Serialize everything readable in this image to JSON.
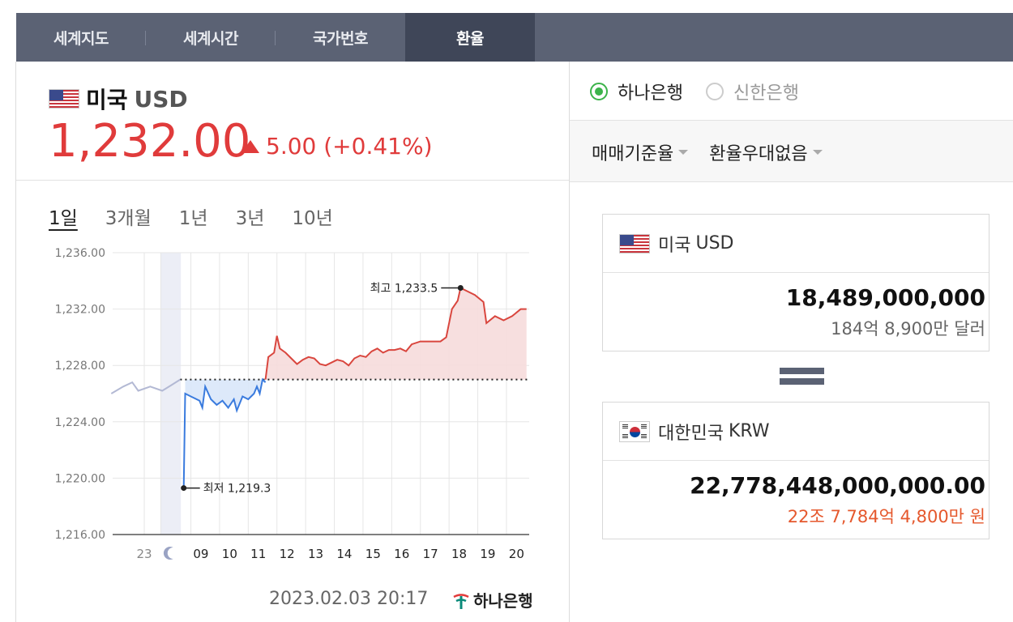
{
  "tabs": [
    {
      "label": "세계지도",
      "active": false
    },
    {
      "label": "세계시간",
      "active": false
    },
    {
      "label": "국가번호",
      "active": false
    },
    {
      "label": "환율",
      "active": true
    }
  ],
  "currency": {
    "name": "미국",
    "code": "USD",
    "rate": "1,232.00",
    "change": "5.00 (+0.41%)",
    "direction": "up",
    "color_up": "#e03b3b"
  },
  "periods": [
    {
      "label": "1일",
      "active": true
    },
    {
      "label": "3개월",
      "active": false
    },
    {
      "label": "1년",
      "active": false
    },
    {
      "label": "3년",
      "active": false
    },
    {
      "label": "10년",
      "active": false
    }
  ],
  "chart_data": {
    "type": "line",
    "y_ticks": [
      "1,236.00",
      "1,232.00",
      "1,228.00",
      "1,224.00",
      "1,220.00",
      "1,216.00"
    ],
    "ylim": [
      1216,
      1236
    ],
    "x_ticks": [
      "23",
      "moon-icon",
      "09",
      "10",
      "11",
      "12",
      "13",
      "14",
      "15",
      "16",
      "17",
      "18",
      "19",
      "20"
    ],
    "baseline": 1227.0,
    "annotations": [
      {
        "label": "최고 1,233.5",
        "x": 18.0,
        "y": 1233.5
      },
      {
        "label": "최저 1,219.3",
        "x": 8.35,
        "y": 1219.3
      }
    ],
    "series": [
      {
        "role": "previous-day",
        "color": "#b3b9d4",
        "points": [
          [
            21.9,
            1226.0
          ],
          [
            22.3,
            1226.5
          ],
          [
            22.6,
            1226.8
          ],
          [
            22.8,
            1226.2
          ],
          [
            23.2,
            1226.5
          ],
          [
            23.6,
            1226.2
          ],
          [
            23.9,
            1226.6
          ],
          [
            24.2,
            1227.0
          ]
        ]
      },
      {
        "role": "below-baseline",
        "color": "#3a7bde",
        "points": [
          [
            8.35,
            1219.3
          ],
          [
            8.4,
            1226.0
          ],
          [
            8.6,
            1225.8
          ],
          [
            8.9,
            1225.5
          ],
          [
            9.0,
            1225.0
          ],
          [
            9.1,
            1226.5
          ],
          [
            9.3,
            1225.6
          ],
          [
            9.5,
            1225.2
          ],
          [
            9.7,
            1225.5
          ],
          [
            9.9,
            1225.0
          ],
          [
            10.1,
            1225.6
          ],
          [
            10.2,
            1224.8
          ],
          [
            10.4,
            1225.8
          ],
          [
            10.6,
            1225.6
          ],
          [
            10.8,
            1226.0
          ],
          [
            10.9,
            1226.5
          ],
          [
            11.0,
            1226.0
          ],
          [
            11.1,
            1227.0
          ],
          [
            11.2,
            1226.8
          ]
        ]
      },
      {
        "role": "above-baseline",
        "color": "#d9463e",
        "points": [
          [
            11.2,
            1227.0
          ],
          [
            11.3,
            1228.6
          ],
          [
            11.5,
            1228.9
          ],
          [
            11.6,
            1230.1
          ],
          [
            11.7,
            1229.2
          ],
          [
            11.9,
            1228.9
          ],
          [
            12.1,
            1228.5
          ],
          [
            12.3,
            1228.1
          ],
          [
            12.5,
            1228.4
          ],
          [
            12.7,
            1228.6
          ],
          [
            12.9,
            1228.5
          ],
          [
            13.1,
            1228.1
          ],
          [
            13.3,
            1228.0
          ],
          [
            13.5,
            1228.2
          ],
          [
            13.7,
            1228.4
          ],
          [
            13.9,
            1228.3
          ],
          [
            14.1,
            1228.0
          ],
          [
            14.3,
            1228.5
          ],
          [
            14.5,
            1228.7
          ],
          [
            14.7,
            1228.6
          ],
          [
            14.9,
            1229.0
          ],
          [
            15.1,
            1229.2
          ],
          [
            15.3,
            1228.9
          ],
          [
            15.5,
            1229.1
          ],
          [
            15.7,
            1229.1
          ],
          [
            15.9,
            1229.2
          ],
          [
            16.1,
            1229.0
          ],
          [
            16.3,
            1229.5
          ],
          [
            16.6,
            1229.7
          ],
          [
            17.0,
            1229.7
          ],
          [
            17.3,
            1229.7
          ],
          [
            17.5,
            1230.0
          ],
          [
            17.7,
            1232.0
          ],
          [
            17.9,
            1232.6
          ],
          [
            18.0,
            1233.5
          ],
          [
            18.2,
            1233.3
          ],
          [
            18.5,
            1233.0
          ],
          [
            18.8,
            1232.5
          ],
          [
            18.9,
            1231.0
          ],
          [
            19.2,
            1231.5
          ],
          [
            19.5,
            1231.2
          ],
          [
            19.8,
            1231.5
          ],
          [
            20.1,
            1232.0
          ],
          [
            20.3,
            1232.0
          ]
        ]
      }
    ]
  },
  "timestamp": "2023.02.03 20:17",
  "bank_logo": "하나은행",
  "banks": [
    {
      "label": "하나은행",
      "selected": true
    },
    {
      "label": "신한은행",
      "selected": false
    }
  ],
  "rate_type": "매매기준율",
  "preference": "환율우대없음",
  "from": {
    "name": "미국",
    "code": "USD",
    "amount": "18,489,000,000",
    "amount_words": "184억 8,900만 달러"
  },
  "to": {
    "name": "대한민국",
    "code": "KRW",
    "amount": "22,778,448,000,000.00",
    "amount_words": "22조 7,784억 4,800만 원"
  }
}
